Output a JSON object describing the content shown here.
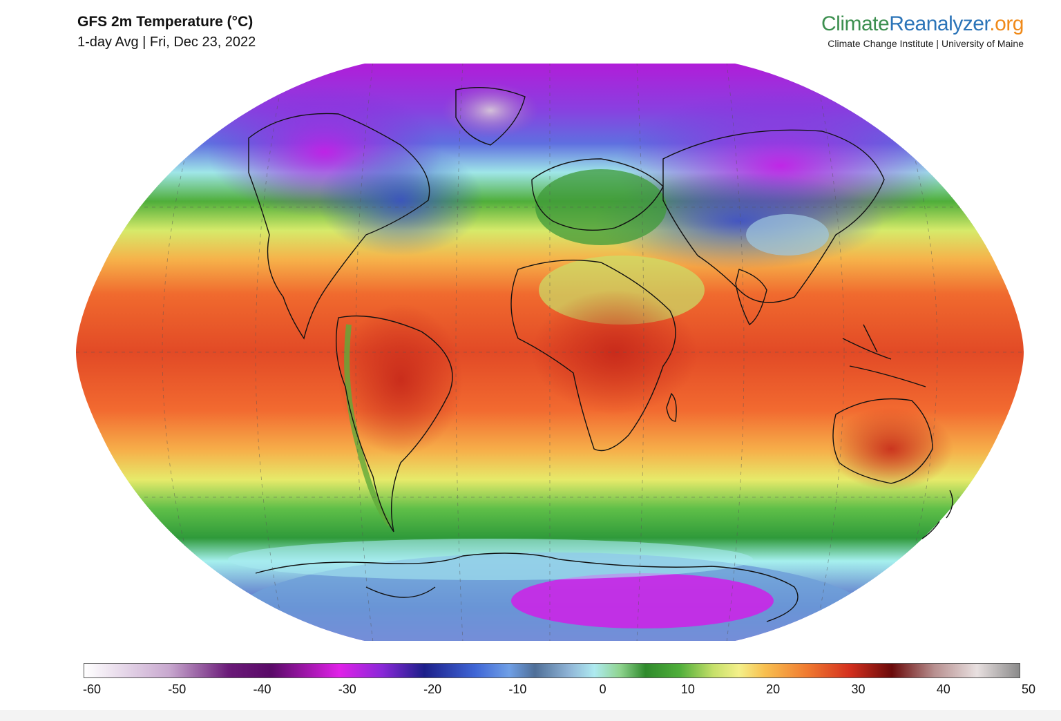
{
  "header": {
    "title": "GFS 2m Temperature (°C)",
    "subtitle": "1-day Avg | Fri, Dec 23, 2022"
  },
  "brand": {
    "part1": "Climate",
    "part2": "Reanalyzer",
    "part3": ".org",
    "subtitle": "Climate Change Institute | University of Maine",
    "colors": {
      "part1": "#3c8f4f",
      "part2": "#2b74b8",
      "part3": "#f08a1a"
    }
  },
  "map": {
    "projection": "Robinson (global)",
    "variable": "2m air temperature",
    "units": "°C",
    "gridlines": true
  },
  "colorbar": {
    "min": -60,
    "max": 50,
    "tick_labels": [
      "-60",
      "-50",
      "-40",
      "-30",
      "-20",
      "-10",
      "0",
      "10",
      "20",
      "30",
      "40",
      "50"
    ],
    "tick_values": [
      -60,
      -50,
      -40,
      -30,
      -20,
      -10,
      0,
      10,
      20,
      30,
      40,
      50
    ],
    "stops": [
      {
        "v": -60,
        "c": "#ffffff"
      },
      {
        "v": -50,
        "c": "#c8a8cf"
      },
      {
        "v": -43,
        "c": "#6a1a78"
      },
      {
        "v": -38,
        "c": "#5a0a68"
      },
      {
        "v": -30,
        "c": "#e020e8"
      },
      {
        "v": -25,
        "c": "#8a28d8"
      },
      {
        "v": -20,
        "c": "#1c1f8a"
      },
      {
        "v": -14,
        "c": "#3f66d6"
      },
      {
        "v": -10,
        "c": "#6f9fe6"
      },
      {
        "v": -7,
        "c": "#4f6f98"
      },
      {
        "v": -3,
        "c": "#8fb4d6"
      },
      {
        "v": 0,
        "c": "#aeeaf0"
      },
      {
        "v": 3,
        "c": "#8fd48f"
      },
      {
        "v": 6,
        "c": "#2f8a2c"
      },
      {
        "v": 10,
        "c": "#4fae3a"
      },
      {
        "v": 14,
        "c": "#c6e06a"
      },
      {
        "v": 17,
        "c": "#f4f08a"
      },
      {
        "v": 20,
        "c": "#f8c050"
      },
      {
        "v": 25,
        "c": "#f07a30"
      },
      {
        "v": 30,
        "c": "#d4301e"
      },
      {
        "v": 35,
        "c": "#6a0a0a"
      },
      {
        "v": 40,
        "c": "#b89090"
      },
      {
        "v": 45,
        "c": "#e8e0e0"
      },
      {
        "v": 50,
        "c": "#8a8a8a"
      }
    ]
  }
}
